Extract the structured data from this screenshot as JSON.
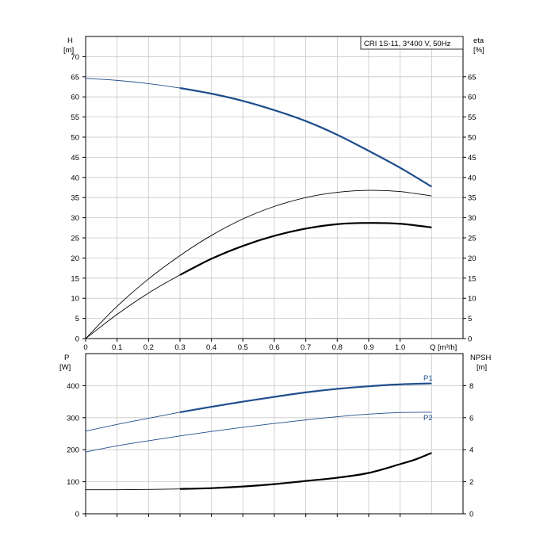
{
  "chart_data": [
    {
      "type": "line",
      "title": "CRI 1S-11, 3*400 V, 50Hz",
      "ylabel_left": "H",
      "ylabel_left_unit": "[m]",
      "ylabel_right": "eta",
      "ylabel_right_unit": "[%]",
      "xlabel": "Q [m³/h]",
      "xlim": [
        0,
        1.2
      ],
      "ylim": [
        0,
        75
      ],
      "x_ticks": [
        "0",
        "0.1",
        "0.2",
        "0.3",
        "0.4",
        "0.5",
        "0.6",
        "0.7",
        "0.8",
        "0.9",
        "1.0"
      ],
      "x_tick_values": [
        0,
        0.1,
        0.2,
        0.3,
        0.4,
        0.5,
        0.6,
        0.7,
        0.8,
        0.9,
        1.0
      ],
      "y_ticks_left": [
        "0",
        "5",
        "10",
        "15",
        "20",
        "25",
        "30",
        "35",
        "40",
        "45",
        "50",
        "55",
        "60",
        "65",
        "70"
      ],
      "y_tick_values_left": [
        0,
        5,
        10,
        15,
        20,
        25,
        30,
        35,
        40,
        45,
        50,
        55,
        60,
        65,
        70
      ],
      "y_ticks_right": [
        "0",
        "5",
        "10",
        "15",
        "20",
        "25",
        "30",
        "35",
        "40",
        "45",
        "50",
        "55",
        "60",
        "65"
      ],
      "y_tick_values_right": [
        0,
        5,
        10,
        15,
        20,
        25,
        30,
        35,
        40,
        45,
        50,
        55,
        60,
        65
      ],
      "grid": true,
      "series": [
        {
          "color": "#1f4e8c",
          "x": [
            0,
            0.1,
            0.2,
            0.3,
            0.4,
            0.5,
            0.6,
            0.7,
            0.8,
            0.9,
            1.0,
            1.1
          ],
          "values": [
            64.6,
            64.1,
            63.3,
            62.2,
            60.8,
            59.0,
            56.7,
            54.0,
            50.6,
            46.6,
            42.4,
            37.7
          ],
          "bold_from": 0.3
        },
        {
          "color": "#000000",
          "x": [
            0,
            0.1,
            0.2,
            0.3,
            0.4,
            0.5,
            0.6,
            0.7,
            0.8,
            0.9,
            1.0,
            1.1
          ],
          "values": [
            0,
            8.0,
            14.8,
            20.6,
            25.6,
            29.7,
            32.8,
            35.0,
            36.3,
            36.8,
            36.5,
            35.4
          ],
          "bold_from": 2
        },
        {
          "color": "#000000",
          "x": [
            0,
            0.1,
            0.2,
            0.3,
            0.4,
            0.5,
            0.6,
            0.7,
            0.8,
            0.9,
            1.0,
            1.1
          ],
          "values": [
            0,
            6.0,
            11.3,
            15.8,
            19.8,
            23.0,
            25.5,
            27.3,
            28.4,
            28.7,
            28.5,
            27.6
          ],
          "bold_from": 0.3
        }
      ]
    },
    {
      "type": "line",
      "ylabel_left": "P",
      "ylabel_left_unit": "[W]",
      "ylabel_right": "NPSH",
      "ylabel_right_unit": "[m]",
      "xlim": [
        0,
        1.2
      ],
      "ylim": [
        0,
        500
      ],
      "y2lim": [
        0,
        10
      ],
      "y_ticks_left": [
        "0",
        "100",
        "200",
        "300",
        "400"
      ],
      "y_tick_values_left": [
        0,
        100,
        200,
        300,
        400
      ],
      "y_ticks_right": [
        "0",
        "2",
        "4",
        "6",
        "8"
      ],
      "y_tick_values_right": [
        0,
        2,
        4,
        6,
        8
      ],
      "grid": true,
      "series": [
        {
          "name": "P1",
          "color": "#1f4e8c",
          "axis": "left",
          "x": [
            0,
            0.1,
            0.2,
            0.3,
            0.4,
            0.5,
            0.6,
            0.7,
            0.8,
            0.9,
            1.0,
            1.1
          ],
          "values": [
            258,
            279,
            298,
            317,
            334,
            350,
            365,
            379,
            390,
            398,
            404,
            407
          ],
          "bold_from": 0.3
        },
        {
          "name": "P2",
          "color": "#1f4e8c",
          "axis": "left",
          "x": [
            0,
            0.1,
            0.2,
            0.3,
            0.4,
            0.5,
            0.6,
            0.7,
            0.8,
            0.9,
            1.0,
            1.1
          ],
          "values": [
            193,
            212,
            228,
            243,
            257,
            270,
            282,
            293,
            303,
            311,
            316,
            317
          ],
          "bold_from": 2
        },
        {
          "color": "#000000",
          "axis": "right",
          "x": [
            0,
            0.1,
            0.2,
            0.3,
            0.4,
            0.5,
            0.6,
            0.7,
            0.8,
            0.9,
            1.0,
            1.05,
            1.1
          ],
          "values": [
            1.5,
            1.5,
            1.52,
            1.55,
            1.6,
            1.7,
            1.85,
            2.05,
            2.25,
            2.55,
            3.1,
            3.4,
            3.8
          ],
          "bold_from": 0.3
        }
      ]
    }
  ]
}
